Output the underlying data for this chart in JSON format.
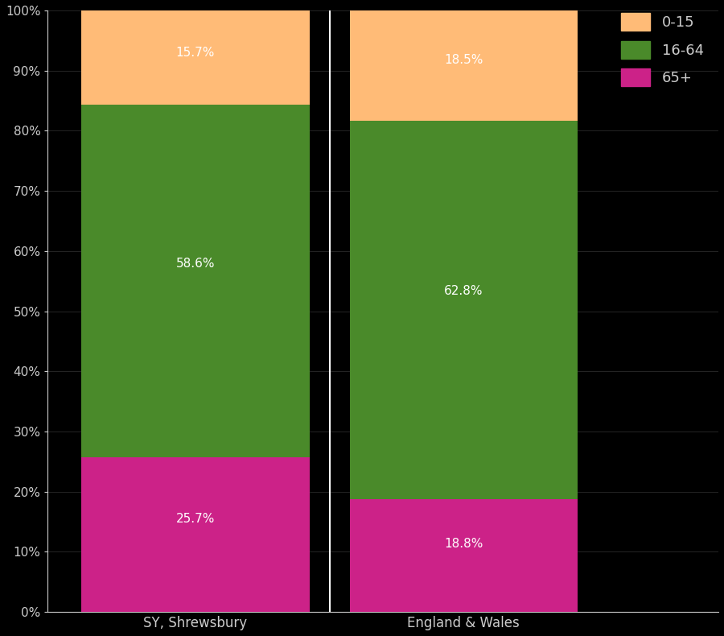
{
  "categories": [
    "SY, Shrewsbury",
    "England & Wales"
  ],
  "age_65plus": [
    25.7,
    18.8
  ],
  "age_16_64": [
    58.6,
    62.8
  ],
  "age_0_15": [
    15.7,
    18.5
  ],
  "color_0_15": "#FFBB77",
  "color_16_64": "#4A8A2A",
  "color_65plus": "#CC2288",
  "background_color": "#000000",
  "text_color": "#CCCCCC",
  "label_color": "#FFFFFF",
  "ytick_values": [
    0,
    10,
    20,
    30,
    40,
    50,
    60,
    70,
    80,
    90,
    100
  ],
  "legend_labels": [
    "0-15",
    "16-64",
    "65+"
  ],
  "bar_width": 0.85
}
